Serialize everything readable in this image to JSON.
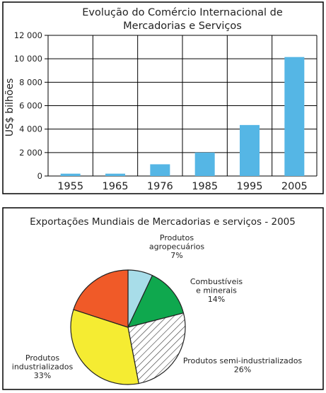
{
  "chart_data": [
    {
      "type": "bar",
      "title": "Evolução do Comércio Internacional de Mercadorias e Serviços",
      "title_lines": [
        "Evolução do Comércio Internacional de",
        "Mercadorias e Serviços"
      ],
      "ylabel": "US$ bilhões",
      "ylim": [
        0,
        12000
      ],
      "yticks": [
        0,
        2000,
        4000,
        6000,
        8000,
        10000,
        12000
      ],
      "ytick_labels": [
        "0",
        "2 000",
        "4 000",
        "6 000",
        "8 000",
        "10 000",
        "12 000"
      ],
      "categories": [
        "1955",
        "1965",
        "1976",
        "1985",
        "1995",
        "2005"
      ],
      "values": [
        200,
        200,
        1000,
        2000,
        4350,
        10150
      ],
      "bar_color": "#55b6e5",
      "grid": true
    },
    {
      "type": "pie",
      "title": "Exportações Mundiais de Mercadorias e serviços - 2005",
      "slices": [
        {
          "label_lines": [
            "Produtos",
            "agropecuários"
          ],
          "value": 7,
          "value_label": "7%",
          "color": "#a8dde9"
        },
        {
          "label_lines": [
            "Combustíveis",
            "e minerais"
          ],
          "value": 14,
          "value_label": "14%",
          "color": "#0fa84e"
        },
        {
          "label_lines": [
            "Produtos semi-industrializados"
          ],
          "value": 26,
          "value_label": "26%",
          "color": "hatch"
        },
        {
          "label_lines": [
            "Produtos",
            "industrializados"
          ],
          "value": 33,
          "value_label": "33%",
          "color": "#f5ec32"
        },
        {
          "label_lines": [],
          "value": 20,
          "value_label": "",
          "color": "#f05a28"
        }
      ]
    }
  ]
}
